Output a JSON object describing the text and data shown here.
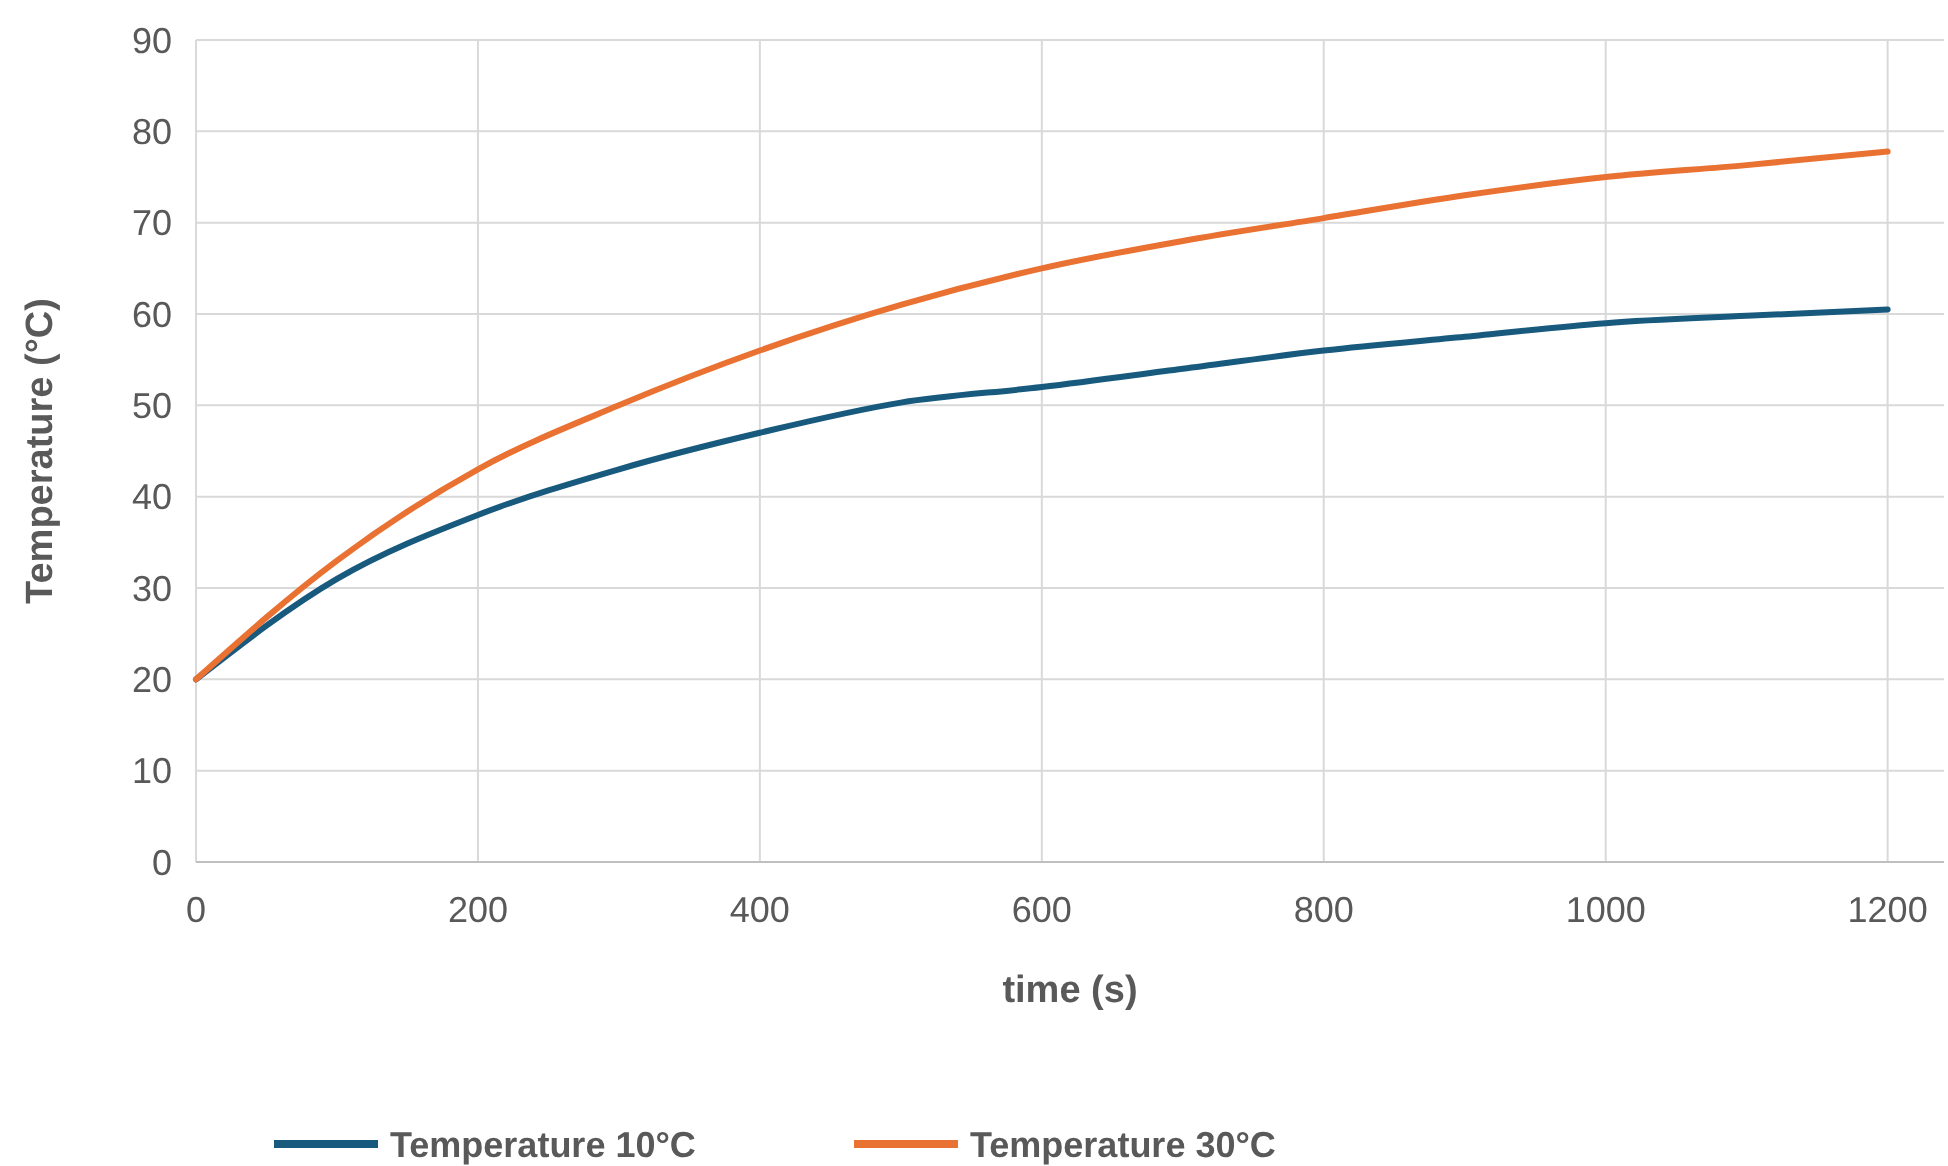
{
  "chart_data": {
    "type": "line",
    "xlabel": "time (s)",
    "ylabel": "Temperature (°C)",
    "x": [
      0,
      100,
      200,
      300,
      400,
      500,
      600,
      700,
      800,
      900,
      1000,
      1100,
      1200
    ],
    "series": [
      {
        "name": "Temperature 10°C",
        "color": "#185a7d",
        "values": [
          20,
          31,
          38,
          43,
          47,
          50.3,
          52,
          54,
          56,
          57.5,
          59,
          59.8,
          60.5
        ]
      },
      {
        "name": "Temperature 30°C",
        "color": "#e97132",
        "values": [
          20,
          33,
          43,
          50,
          56,
          61,
          65,
          68,
          70.5,
          73,
          75,
          76.3,
          77.8
        ]
      }
    ],
    "xlim": [
      0,
      1240
    ],
    "xticks": [
      0,
      200,
      400,
      600,
      800,
      1000,
      1200
    ],
    "ylim": [
      0,
      90
    ],
    "yticks": [
      0,
      10,
      20,
      30,
      40,
      50,
      60,
      70,
      80,
      90
    ],
    "grid": true,
    "legend": "bottom",
    "marker": "none",
    "line_style": "solid"
  }
}
